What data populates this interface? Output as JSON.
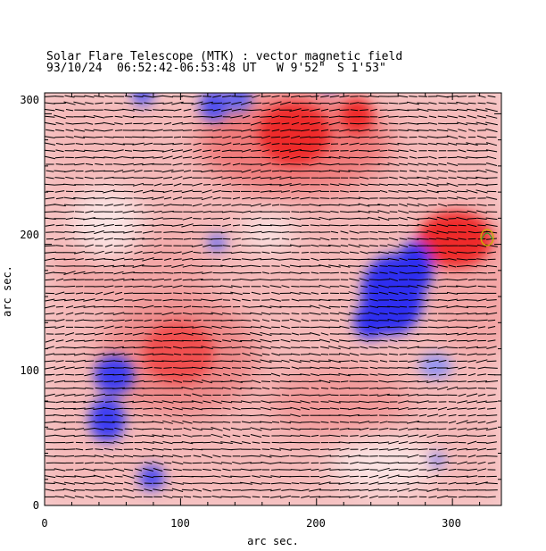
{
  "header": {
    "title": "Solar Flare Telescope (MTK) : vector magnetic field",
    "subtitle_date": "93/10/24",
    "subtitle_time": "06:52:42-06:53:48 UT",
    "subtitle_pos_w": "W 9'52\"",
    "subtitle_pos_s": "S 1'53\""
  },
  "axes": {
    "xlabel": "arc sec.",
    "ylabel": "arc sec.",
    "xlim": [
      0,
      336
    ],
    "ylim": [
      0,
      316
    ],
    "xticks": [
      "0",
      "100",
      "200",
      "300"
    ],
    "yticks": [
      "0",
      "100",
      "200",
      "300"
    ]
  },
  "colors": {
    "positive": "#f03c3c",
    "negative": "#3c3cf0",
    "background": "#ffffff",
    "vectors": "#000000",
    "contour": "#c8b400"
  }
}
